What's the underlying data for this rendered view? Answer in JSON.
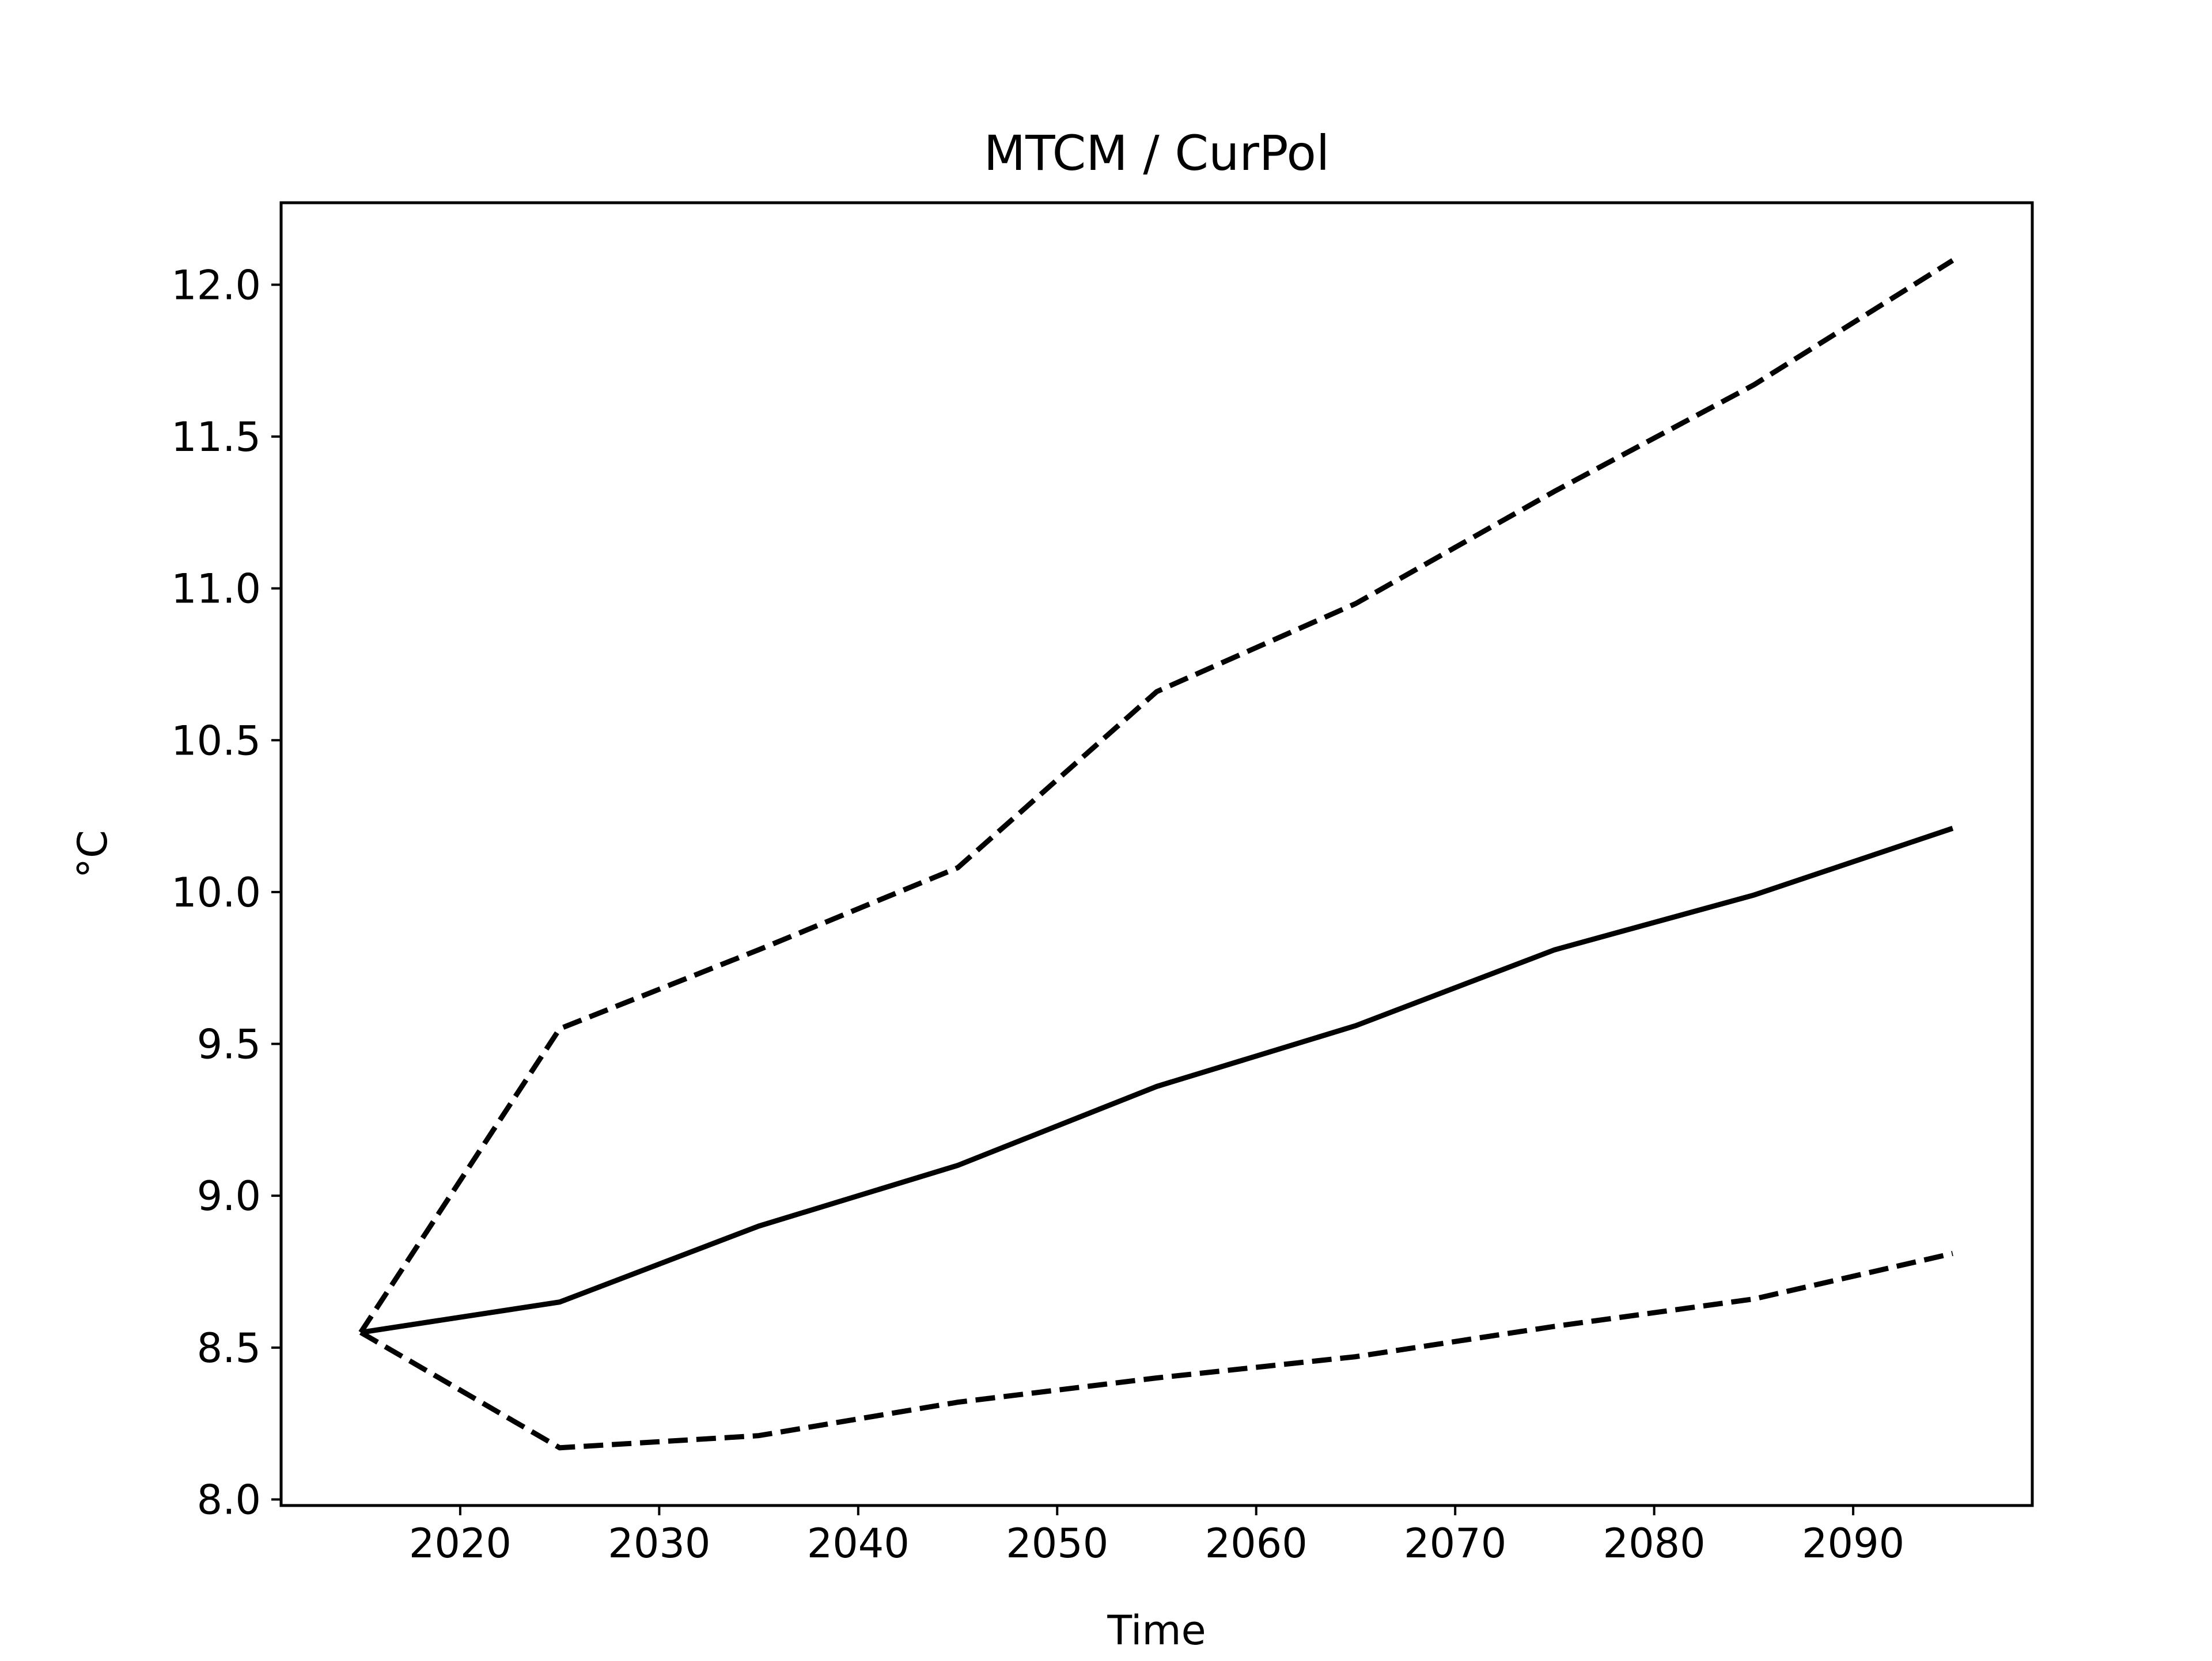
{
  "chart_data": {
    "type": "line",
    "title": "MTCM / CurPol",
    "xlabel": "Time",
    "ylabel": "°C",
    "x": [
      2015,
      2025,
      2035,
      2045,
      2055,
      2065,
      2075,
      2085,
      2095
    ],
    "xlim": [
      2011,
      2099
    ],
    "ylim": [
      7.98,
      12.27
    ],
    "xticks": [
      2020,
      2030,
      2040,
      2050,
      2060,
      2070,
      2080,
      2090
    ],
    "xtick_labels": [
      "2020",
      "2030",
      "2040",
      "2050",
      "2060",
      "2070",
      "2080",
      "2090"
    ],
    "yticks": [
      8.0,
      8.5,
      9.0,
      9.5,
      10.0,
      10.5,
      11.0,
      11.5,
      12.0
    ],
    "ytick_labels": [
      "8.0",
      "8.5",
      "9.0",
      "9.5",
      "10.0",
      "10.5",
      "11.0",
      "11.5",
      "12.0"
    ],
    "grid": false,
    "legend": "none",
    "series": [
      {
        "style": "solid",
        "color": "#000000",
        "values": [
          8.55,
          8.65,
          8.9,
          9.1,
          9.36,
          9.56,
          9.81,
          9.99,
          10.21
        ]
      },
      {
        "style": "dashed",
        "color": "#000000",
        "values": [
          8.55,
          9.55,
          9.81,
          10.08,
          10.66,
          10.95,
          11.32,
          11.67,
          12.08
        ]
      },
      {
        "style": "dashed",
        "color": "#000000",
        "values": [
          8.55,
          8.17,
          8.21,
          8.32,
          8.4,
          8.47,
          8.57,
          8.66,
          8.81
        ]
      }
    ]
  }
}
